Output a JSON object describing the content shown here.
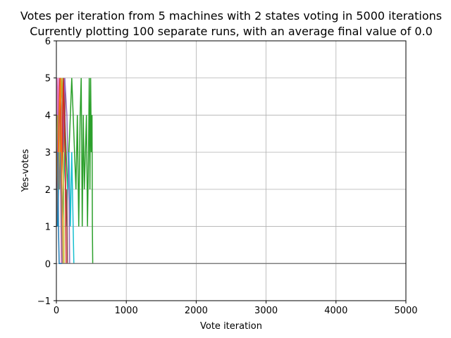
{
  "chart_data": {
    "type": "line",
    "title": "Votes per iteration from 5 machines with 2 states voting in 5000 iterations",
    "subtitle": "Currently plotting 100 separate runs, with an average final value of 0.0",
    "xlabel": "Vote iteration",
    "ylabel": "Yes-votes",
    "xlim": [
      0,
      5000
    ],
    "ylim": [
      -1,
      6
    ],
    "xticks": [
      0,
      1000,
      2000,
      3000,
      4000,
      5000
    ],
    "yticks": [
      -1,
      0,
      1,
      2,
      3,
      4,
      5,
      6
    ],
    "grid": true,
    "final_value": 0,
    "series": [
      {
        "color": "#2ca02c",
        "x": [
          0,
          10,
          20,
          30,
          45,
          60,
          80,
          100,
          120,
          140,
          160,
          180,
          200,
          220,
          240,
          260,
          280,
          300,
          320,
          340,
          355,
          370,
          385,
          400,
          415,
          430,
          445,
          460,
          470,
          480,
          490,
          500,
          510,
          515,
          520,
          530,
          5000
        ],
        "y": [
          2,
          3,
          4,
          3,
          2,
          3,
          4,
          5,
          4,
          3,
          2,
          3,
          4,
          5,
          4,
          3,
          2,
          4,
          1,
          4,
          5,
          1,
          4,
          2,
          3,
          4,
          1,
          3,
          5,
          2,
          5,
          3,
          4,
          1,
          0,
          0,
          0
        ]
      },
      {
        "color": "#17becf",
        "x": [
          0,
          20,
          40,
          60,
          80,
          100,
          120,
          140,
          160,
          180,
          200,
          220,
          230,
          240,
          250,
          5000
        ],
        "y": [
          2,
          1,
          3,
          2,
          1,
          2,
          3,
          1,
          2,
          3,
          1,
          3,
          2,
          1,
          0,
          0
        ]
      },
      {
        "color": "#e377c2",
        "x": [
          0,
          10,
          20,
          30,
          40,
          50,
          60,
          70,
          5000
        ],
        "y": [
          3,
          5,
          4,
          5,
          3,
          5,
          2,
          0,
          0
        ]
      },
      {
        "color": "#8c564b",
        "x": [
          0,
          15,
          30,
          45,
          60,
          75,
          90,
          105,
          120,
          135,
          150,
          160,
          5000
        ],
        "y": [
          2,
          4,
          3,
          4,
          5,
          2,
          4,
          3,
          5,
          1,
          2,
          0,
          0
        ]
      },
      {
        "color": "#bcbd22",
        "x": [
          0,
          20,
          40,
          60,
          80,
          100,
          110,
          5000
        ],
        "y": [
          3,
          4,
          2,
          4,
          5,
          3,
          0,
          0
        ]
      },
      {
        "color": "#9467bd",
        "x": [
          0,
          30,
          60,
          90,
          120,
          150,
          180,
          190,
          5000
        ],
        "y": [
          2,
          4,
          5,
          3,
          5,
          4,
          2,
          0,
          0
        ]
      },
      {
        "color": "#d62728",
        "x": [
          0,
          25,
          50,
          75,
          100,
          125,
          140,
          5000
        ],
        "y": [
          2,
          3,
          5,
          2,
          5,
          3,
          0,
          0
        ]
      },
      {
        "color": "#ff7f0e",
        "x": [
          0,
          20,
          40,
          60,
          80,
          90,
          5000
        ],
        "y": [
          3,
          2,
          4,
          5,
          2,
          0,
          0
        ]
      },
      {
        "color": "#1f77b4",
        "x": [
          0,
          10,
          20,
          30,
          40,
          5000
        ],
        "y": [
          2,
          1,
          3,
          1,
          0,
          0
        ]
      },
      {
        "color": "#7f7f7f",
        "x": [
          0,
          15,
          30,
          45,
          60,
          75,
          85,
          5000
        ],
        "y": [
          1,
          2,
          3,
          2,
          3,
          1,
          0,
          0
        ]
      }
    ]
  }
}
